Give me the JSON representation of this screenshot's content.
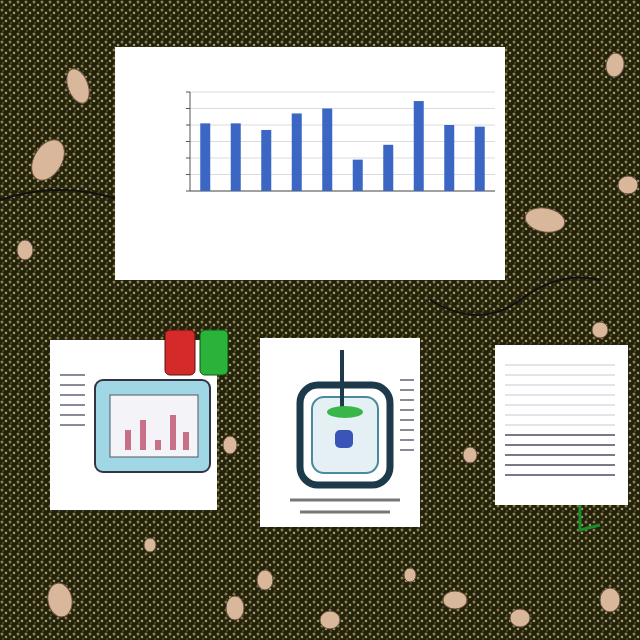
{
  "chart_data": {
    "type": "bar",
    "categories": [
      null,
      null,
      null,
      null,
      null,
      null,
      null,
      null,
      null,
      null
    ],
    "values": [
      4.1,
      4.1,
      3.7,
      4.7,
      5.0,
      1.9,
      2.8,
      5.45,
      4.0,
      3.9
    ],
    "color": "#3b66c4",
    "ylim": [
      0,
      6
    ],
    "yticks": [
      0,
      1,
      2,
      3,
      4,
      5,
      6
    ],
    "grid": true,
    "tick_labels": false
  }
}
